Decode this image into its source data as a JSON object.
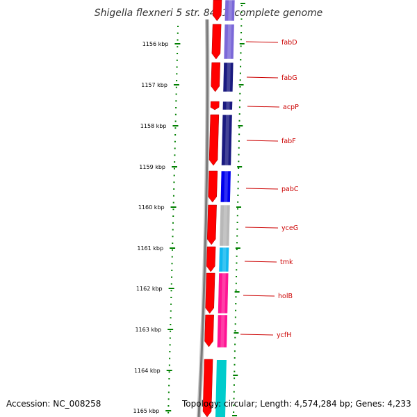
{
  "title": "Shigella flexneri 5 str. 8401, complete genome",
  "ruler": {
    "labels": [
      "1156 kbp",
      "1157 kbp",
      "1158 kbp",
      "1159 kbp",
      "1160 kbp",
      "1161 kbp",
      "1162 kbp",
      "1163 kbp",
      "1164 kbp",
      "1165 kbp"
    ]
  },
  "genes": [
    {
      "name": "fabD",
      "color": "#7b68d8"
    },
    {
      "name": "fabG",
      "color": "#1a1a80"
    },
    {
      "name": "acpP",
      "color": "#1a1a80"
    },
    {
      "name": "fabF",
      "color": "#1a1a80"
    },
    {
      "name": "pabC",
      "color": "#0000ee"
    },
    {
      "name": "yceG",
      "color": "#b8b8b8"
    },
    {
      "name": "tmk",
      "color": "#11b8f0"
    },
    {
      "name": "holB",
      "color": "#ff1493"
    },
    {
      "name": "ycfH",
      "color": "#ff1493"
    }
  ],
  "colors": {
    "forward_cds": "#ff0000",
    "backbone": "#808080",
    "tick": "#008000",
    "label": "#cc0000",
    "last_segment": "#00cccc"
  },
  "footer": {
    "accession": "Accession: NC_008258",
    "topology": "Topology: circular; Length: 4,574,284 bp; Genes: 4,233"
  }
}
